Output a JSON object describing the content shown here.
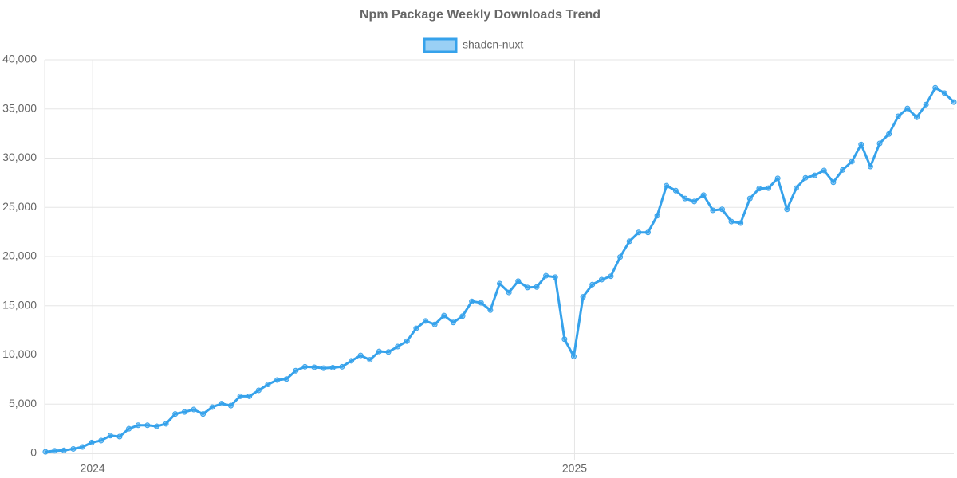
{
  "chart_data": {
    "type": "line",
    "title": "Npm Package Weekly Downloads Trend",
    "categories": [
      null,
      null,
      null,
      null,
      null,
      "2024",
      null,
      null,
      null,
      null,
      null,
      null,
      null,
      null,
      null,
      null,
      null,
      null,
      null,
      null,
      null,
      null,
      null,
      null,
      null,
      null,
      null,
      null,
      null,
      null,
      null,
      null,
      null,
      null,
      null,
      null,
      null,
      null,
      null,
      null,
      null,
      null,
      null,
      null,
      null,
      null,
      null,
      null,
      null,
      null,
      null,
      null,
      null,
      null,
      null,
      null,
      null,
      "2025",
      null,
      null,
      null,
      null,
      null,
      null,
      null,
      null,
      null,
      null,
      null,
      null,
      null,
      null,
      null,
      null,
      null,
      null,
      null,
      null,
      null,
      null,
      null,
      null,
      null,
      null,
      null,
      null,
      null,
      null,
      null,
      null,
      null,
      null,
      null,
      null,
      null,
      null,
      null,
      null,
      null
    ],
    "series": [
      {
        "name": "shadcn-nuxt",
        "color": "#36a2eb",
        "values": [
          150,
          250,
          300,
          450,
          650,
          1100,
          1300,
          1800,
          1700,
          2500,
          2850,
          2850,
          2750,
          3000,
          4000,
          4200,
          4450,
          4000,
          4700,
          5050,
          4850,
          5800,
          5800,
          6400,
          7000,
          7450,
          7550,
          8400,
          8800,
          8750,
          8650,
          8700,
          8800,
          9400,
          9950,
          9500,
          10350,
          10300,
          10850,
          11400,
          12700,
          13450,
          13100,
          14000,
          13300,
          13950,
          15450,
          15300,
          14550,
          17250,
          16350,
          17500,
          16850,
          16900,
          18050,
          17900,
          11600,
          9850,
          15900,
          17150,
          17650,
          18000,
          19950,
          21550,
          22450,
          22450,
          24150,
          27200,
          26700,
          25900,
          25600,
          26250,
          24700,
          24800,
          23550,
          23400,
          25900,
          26900,
          26950,
          27950,
          24800,
          26950,
          28000,
          28250,
          28750,
          27550,
          28800,
          29650,
          31400,
          29150,
          31500,
          32450,
          34250,
          35050,
          34150,
          35450,
          37150,
          36600,
          35700
        ]
      }
    ],
    "ylim": [
      0,
      40000
    ],
    "yticks": [
      0,
      {
        "value": 5000,
        "label": "5,000"
      },
      {
        "value": 10000,
        "label": "10,000"
      },
      {
        "value": 15000,
        "label": "15,000"
      },
      {
        "value": 20000,
        "label": "20,000"
      },
      {
        "value": 25000,
        "label": "25,000"
      },
      {
        "value": 30000,
        "label": "30,000"
      },
      {
        "value": 35000,
        "label": "35,000"
      },
      {
        "value": 40000,
        "label": "40,000"
      }
    ],
    "grid": true,
    "legend": "top"
  }
}
